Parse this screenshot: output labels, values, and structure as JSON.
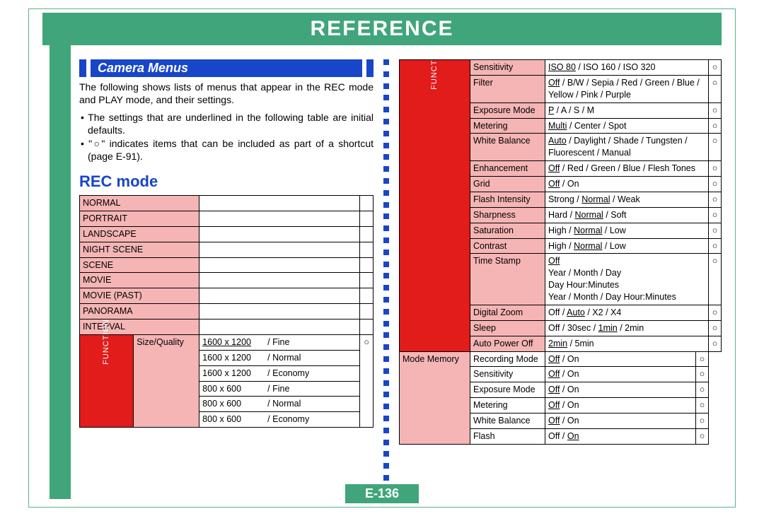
{
  "page": {
    "title": "REFERENCE",
    "section_header": "Camera Menus",
    "intro": "The following shows lists of menus that appear in the REC mode and PLAY mode, and their settings.",
    "bullet1": "• The settings that are underlined in the following table are initial defaults.",
    "bullet2": "• \"○\" indicates items that can be included as part of a shortcut (page E-91).",
    "mode_title": "REC mode",
    "page_number": "E-136",
    "func_label": "FUNCTION"
  },
  "colors": {
    "green": "#40a57a",
    "blue": "#1846c8",
    "pink": "#f5b5b5",
    "red": "#e21b1b"
  },
  "left_modes": [
    "NORMAL",
    "PORTRAIT",
    "LANDSCAPE",
    "NIGHT SCENE",
    "SCENE",
    "MOVIE",
    "MOVIE (PAST)",
    "PANORAMA",
    "INTERVAL"
  ],
  "size_quality": {
    "label": "Size/Quality",
    "rows": [
      {
        "size": "1600 x 1200",
        "q": "/ Fine",
        "u": true
      },
      {
        "size": "1600 x 1200",
        "q": "/ Normal"
      },
      {
        "size": "1600 x 1200",
        "q": "/ Economy"
      },
      {
        "size": "800 x 600",
        "q": "/ Fine"
      },
      {
        "size": "800 x 600",
        "q": "/ Normal"
      },
      {
        "size": "800 x 600",
        "q": "/ Economy"
      }
    ],
    "circle": "○"
  },
  "right_rows": [
    {
      "name": "Sensitivity",
      "opts": [
        {
          "t": "ISO 80",
          "u": true
        },
        {
          "t": " / ISO 160 / ISO 320"
        }
      ],
      "c": "○"
    },
    {
      "name": "Filter",
      "opts": [
        {
          "t": "Off",
          "u": true
        },
        {
          "t": " / B/W / Sepia / Red / Green / Blue / Yellow / Pink / Purple"
        }
      ],
      "c": "○"
    },
    {
      "name": "Exposure Mode",
      "opts": [
        {
          "t": "P",
          "u": true
        },
        {
          "t": " / A / S / M"
        }
      ],
      "c": "○"
    },
    {
      "name": "Metering",
      "opts": [
        {
          "t": "Multi",
          "u": true
        },
        {
          "t": " / Center / Spot"
        }
      ],
      "c": "○"
    },
    {
      "name": "White Balance",
      "opts": [
        {
          "t": "Auto",
          "u": true
        },
        {
          "t": " / Daylight / Shade / Tungsten / Fluorescent / Manual"
        }
      ],
      "c": "○"
    },
    {
      "name": "Enhancement",
      "opts": [
        {
          "t": "Off",
          "u": true
        },
        {
          "t": " / Red / Green / Blue / Flesh Tones"
        }
      ],
      "c": "○"
    },
    {
      "name": "Grid",
      "opts": [
        {
          "t": "Off",
          "u": true
        },
        {
          "t": " / On"
        }
      ],
      "c": "○"
    },
    {
      "name": "Flash Intensity",
      "opts": [
        {
          "t": "Strong / "
        },
        {
          "t": "Normal",
          "u": true
        },
        {
          "t": " / Weak"
        }
      ],
      "c": "○"
    },
    {
      "name": "Sharpness",
      "opts": [
        {
          "t": "Hard / "
        },
        {
          "t": "Normal",
          "u": true
        },
        {
          "t": " / Soft"
        }
      ],
      "c": "○"
    },
    {
      "name": "Saturation",
      "opts": [
        {
          "t": "High / "
        },
        {
          "t": "Normal",
          "u": true
        },
        {
          "t": " / Low"
        }
      ],
      "c": "○"
    },
    {
      "name": "Contrast",
      "opts": [
        {
          "t": "High / "
        },
        {
          "t": "Normal",
          "u": true
        },
        {
          "t": " / Low"
        }
      ],
      "c": "○"
    },
    {
      "name": "Time Stamp",
      "opts": [
        {
          "t": "Off",
          "u": true
        },
        {
          "t": "\nYear / Month / Day\nDay  Hour:Minutes\nYear / Month / Day  Hour:Minutes"
        }
      ],
      "c": "○"
    },
    {
      "name": "Digital Zoom",
      "opts": [
        {
          "t": "Off / "
        },
        {
          "t": "Auto",
          "u": true
        },
        {
          "t": " / X2 / X4"
        }
      ],
      "c": "○"
    },
    {
      "name": "Sleep",
      "opts": [
        {
          "t": "Off / 30sec / "
        },
        {
          "t": "1min",
          "u": true
        },
        {
          "t": " / 2min"
        }
      ],
      "c": "○"
    },
    {
      "name": "Auto Power Off",
      "opts": [
        {
          "t": "2min",
          "u": true
        },
        {
          "t": " / 5min"
        }
      ],
      "c": "○"
    }
  ],
  "mode_memory": {
    "label": "Mode Memory",
    "rows": [
      {
        "sub": "Recording Mode",
        "opts": [
          {
            "t": "Off",
            "u": true
          },
          {
            "t": " / On"
          }
        ],
        "c": "○"
      },
      {
        "sub": "Sensitivity",
        "opts": [
          {
            "t": "Off",
            "u": true
          },
          {
            "t": " / On"
          }
        ],
        "c": "○"
      },
      {
        "sub": "Exposure Mode",
        "opts": [
          {
            "t": "Off",
            "u": true
          },
          {
            "t": " / On"
          }
        ],
        "c": "○"
      },
      {
        "sub": "Metering",
        "opts": [
          {
            "t": "Off",
            "u": true
          },
          {
            "t": " / On"
          }
        ],
        "c": "○"
      },
      {
        "sub": "White Balance",
        "opts": [
          {
            "t": "Off",
            "u": true
          },
          {
            "t": " / On"
          }
        ],
        "c": "○"
      },
      {
        "sub": "Flash",
        "opts": [
          {
            "t": "Off / "
          },
          {
            "t": "On",
            "u": true
          }
        ],
        "c": "○"
      }
    ]
  }
}
